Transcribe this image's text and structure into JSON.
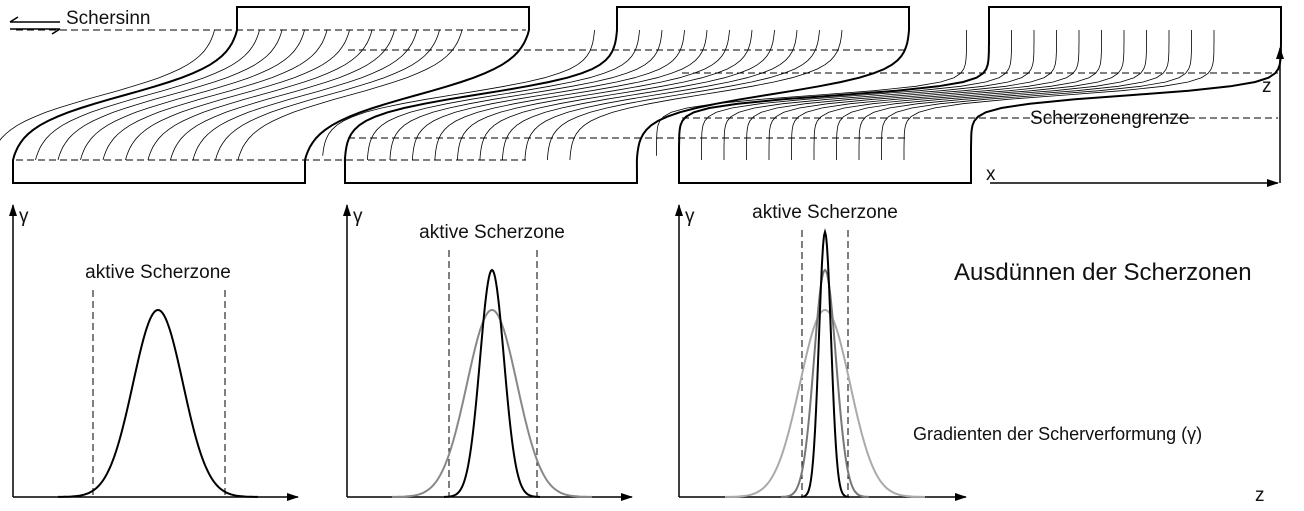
{
  "labels": {
    "shear_sense": "Schersinn",
    "z_axis_top": "z",
    "zone_boundary": "Scherzonengrenze",
    "x_axis": "x",
    "z_axis_bottom": "z",
    "title": "Ausdünnen der Scherzonen",
    "subtitle": "Gradienten der Scherverformung (γ)"
  },
  "panels": [
    {
      "y_label": "γ",
      "zone_label": "aktive Scherzone"
    },
    {
      "y_label": "γ",
      "zone_label": "aktive Scherzone"
    },
    {
      "y_label": "γ",
      "zone_label": "aktive Scherzone"
    }
  ]
}
